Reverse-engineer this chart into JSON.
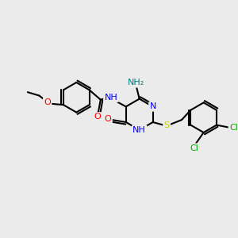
{
  "bg_color": "#ebebeb",
  "bond_color": "#000000",
  "bond_width": 1.5,
  "atom_colors": {
    "N": "#0000ff",
    "O": "#ff0000",
    "S": "#cccc00",
    "Cl": "#00aa00",
    "NH": "#0000ff",
    "NH2": "#008080"
  },
  "font_size": 8,
  "figsize": [
    3.0,
    3.0
  ],
  "dpi": 100
}
